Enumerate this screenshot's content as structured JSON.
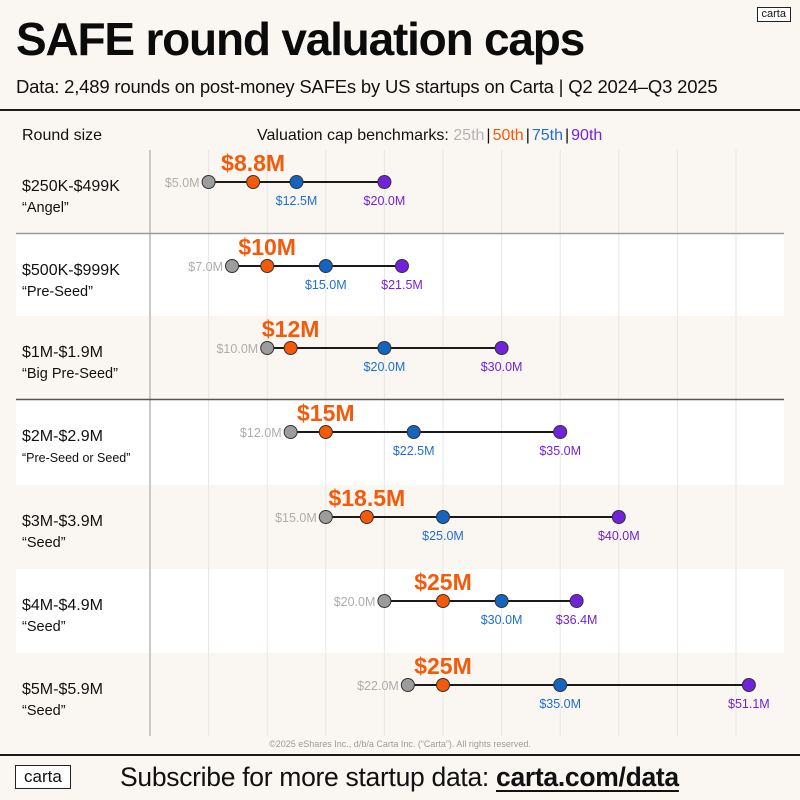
{
  "header": {
    "title": "SAFE round valuation caps",
    "subtitle": "Data: 2,489 rounds on post-money SAFEs by US startups on Carta | Q2 2024–Q3 2025",
    "logo": "carta"
  },
  "colors": {
    "p25": "#9c9c9c",
    "p25_text": "#adadad",
    "p50": "#f55a0a",
    "p75": "#1565c0",
    "p75_text": "#1e6fd0",
    "p90": "#7322db",
    "line": "#1a1a1a"
  },
  "chart_data": {
    "type": "dot-range",
    "title": "SAFE round valuation caps",
    "column_header": "Round size",
    "legend_label": "Valuation cap benchmarks:",
    "legend": [
      {
        "key": "p25",
        "label": "25th"
      },
      {
        "key": "p50",
        "label": "50th"
      },
      {
        "key": "p75",
        "label": "75th"
      },
      {
        "key": "p90",
        "label": "90th"
      }
    ],
    "unit": "$M",
    "xlim": [
      0,
      55
    ],
    "grid_step": 5,
    "grid": true,
    "rows": [
      {
        "round": "$250K-$499K",
        "stage": "“Angel”",
        "p25": 5.0,
        "p50": 8.8,
        "p75": 12.5,
        "p90": 20.0,
        "p25_label": "$5.0M",
        "p50_label": "$8.8M",
        "p75_label": "$12.5M",
        "p90_label": "$20.0M"
      },
      {
        "round": "$500K-$999K",
        "stage": "“Pre-Seed”",
        "p25": 7.0,
        "p50": 10.0,
        "p75": 15.0,
        "p90": 21.5,
        "p25_label": "$7.0M",
        "p50_label": "$10M",
        "p75_label": "$15.0M",
        "p90_label": "$21.5M"
      },
      {
        "round": "$1M-$1.9M",
        "stage": "“Big Pre-Seed”",
        "p25": 10.0,
        "p50": 12.0,
        "p75": 20.0,
        "p90": 30.0,
        "p25_label": "$10.0M",
        "p50_label": "$12M",
        "p75_label": "$20.0M",
        "p90_label": "$30.0M"
      },
      {
        "round": "$2M-$2.9M",
        "stage": "“Pre-Seed or Seed”",
        "p25": 12.0,
        "p50": 15.0,
        "p75": 22.5,
        "p90": 35.0,
        "p25_label": "$12.0M",
        "p50_label": "$15M",
        "p75_label": "$22.5M",
        "p90_label": "$35.0M"
      },
      {
        "round": "$3M-$3.9M",
        "stage": "“Seed”",
        "p25": 15.0,
        "p50": 18.5,
        "p75": 25.0,
        "p90": 40.0,
        "p25_label": "$15.0M",
        "p50_label": "$18.5M",
        "p75_label": "$25.0M",
        "p90_label": "$40.0M"
      },
      {
        "round": "$4M-$4.9M",
        "stage": "“Seed”",
        "p25": 20.0,
        "p50": 25.0,
        "p75": 30.0,
        "p90": 36.4,
        "p25_label": "$20.0M",
        "p50_label": "$25M",
        "p75_label": "$30.0M",
        "p90_label": "$36.4M"
      },
      {
        "round": "$5M-$5.9M",
        "stage": "“Seed”",
        "p25": 22.0,
        "p50": 25.0,
        "p75": 35.0,
        "p90": 51.1,
        "p25_label": "$22.0M",
        "p50_label": "$25M",
        "p75_label": "$35.0M",
        "p90_label": "$51.1M"
      }
    ]
  },
  "footer": {
    "copyright": "©2025 eShares Inc., d/b/a Carta Inc. (“Carta”). All rights reserved.",
    "logo": "carta",
    "cta_text": "Subscribe for more startup data: ",
    "cta_link": "carta.com/data"
  }
}
